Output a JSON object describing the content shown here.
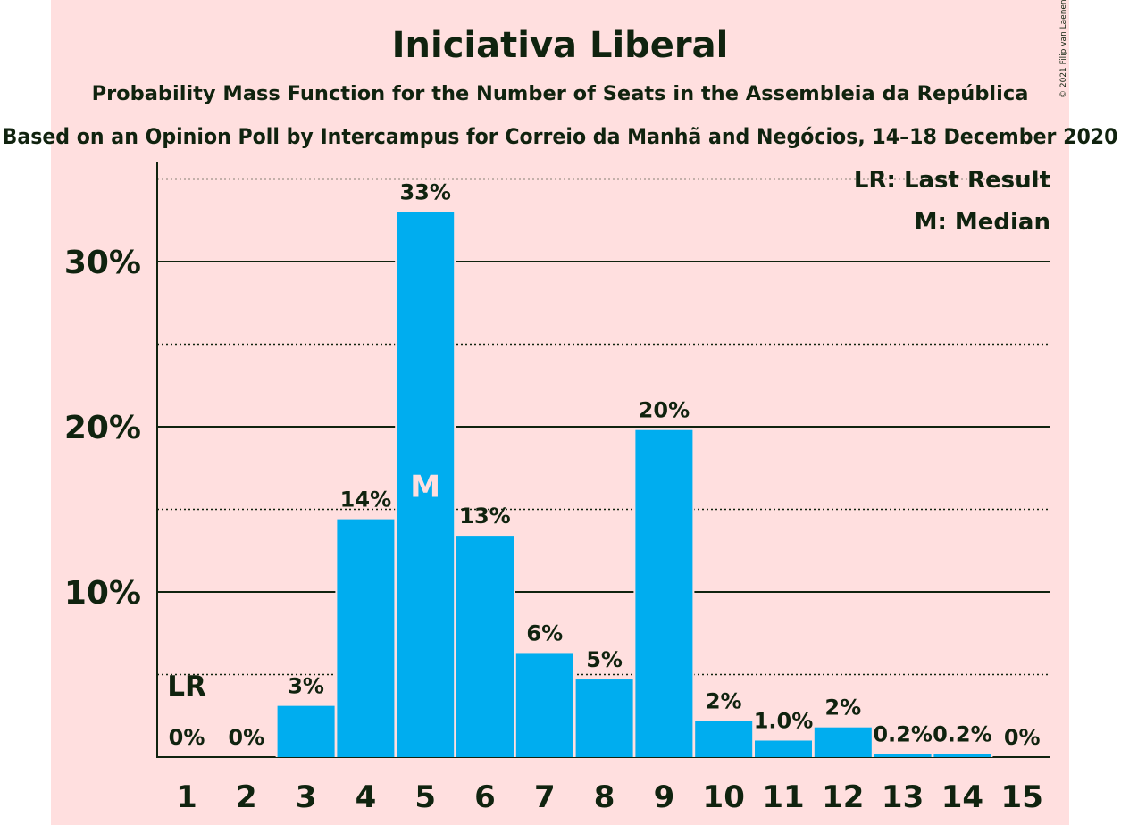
{
  "chart_data": {
    "type": "bar",
    "title": "Iniciativa Liberal",
    "subtitle": "Probability Mass Function for the Number of Seats in the Assembleia da República",
    "subtitle2": "Based on an Opinion Poll by Intercampus for Correio da Manhã and Negócios, 14–18 December 2020",
    "copyright": "© 2021 Filip van Laenen",
    "categories": [
      "1",
      "2",
      "3",
      "4",
      "5",
      "6",
      "7",
      "8",
      "9",
      "10",
      "11",
      "12",
      "13",
      "14",
      "15"
    ],
    "values": [
      0,
      0,
      3.1,
      14.4,
      33.0,
      13.4,
      6.3,
      4.7,
      19.8,
      2.2,
      1.0,
      1.8,
      0.2,
      0.2,
      0
    ],
    "value_labels": [
      "0%",
      "0%",
      "3%",
      "14%",
      "33%",
      "13%",
      "6%",
      "5%",
      "20%",
      "2%",
      "1.0%",
      "2%",
      "0.2%",
      "0.2%",
      "0%"
    ],
    "yticks": [
      {
        "value": 10,
        "label": "10%"
      },
      {
        "value": 20,
        "label": "20%"
      },
      {
        "value": 30,
        "label": "30%"
      }
    ],
    "ylim": [
      0,
      35.9
    ],
    "last_result_category": "1",
    "last_result_marker": "LR",
    "median_category": "5",
    "median_marker": "M",
    "legend": [
      "LR: Last Result",
      "M: Median"
    ],
    "legend_position": "top-right",
    "grid": "solid lines at 10% steps, dotted lines at 5% steps",
    "colors": {
      "bar": "#00adef",
      "background": "#ffdfdf",
      "text": "#10230f"
    }
  }
}
